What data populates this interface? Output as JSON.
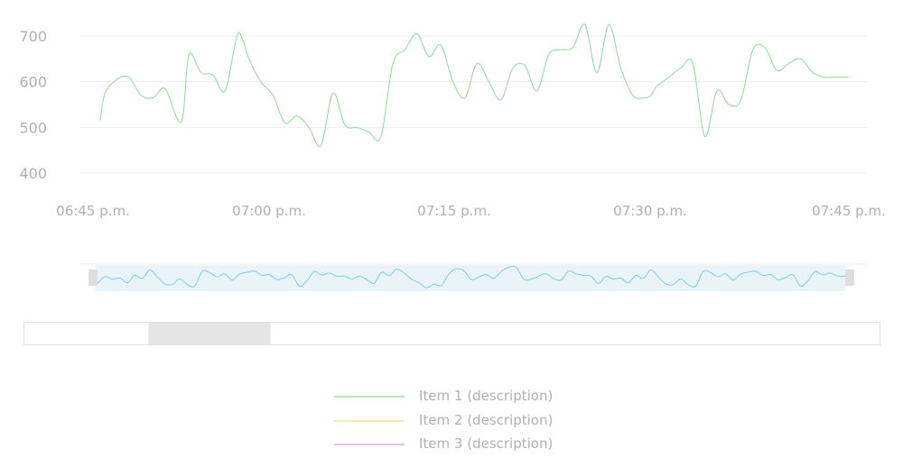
{
  "chart_data": {
    "type": "line",
    "title": "",
    "xlabel": "",
    "ylabel": "",
    "ylim": [
      400,
      700
    ],
    "yticks": [
      "400",
      "500",
      "600",
      "700"
    ],
    "xtick_labels": [
      "06:45 p.m.",
      "07:00 p.m.",
      "07:15 p.m.",
      "07:30 p.m.",
      "07:45 p.m."
    ],
    "grid": true,
    "legend_placement": "bottom-center",
    "series": [
      {
        "name": "Item 1 (description)",
        "color": "#8fd99a",
        "x_minutes": [
          0,
          1,
          2,
          3,
          4,
          5,
          6,
          7,
          7.5,
          8,
          9,
          10,
          11,
          12,
          12.5,
          13,
          14,
          15,
          16,
          17,
          18,
          19,
          20,
          21,
          22,
          23,
          24,
          25,
          26,
          27,
          28,
          29,
          30,
          31,
          32,
          33,
          34,
          35,
          36,
          37,
          38,
          39,
          40,
          41,
          42,
          43,
          44,
          45,
          46,
          46.5,
          47,
          48,
          49,
          50,
          51,
          52,
          53,
          54,
          55,
          56,
          57,
          58,
          59,
          60,
          61,
          62,
          63
        ],
        "values": [
          515,
          575,
          605,
          610,
          570,
          565,
          585,
          520,
          525,
          660,
          620,
          615,
          580,
          700,
          690,
          650,
          600,
          570,
          510,
          525,
          500,
          460,
          575,
          505,
          500,
          490,
          480,
          640,
          670,
          705,
          655,
          680,
          600,
          565,
          640,
          600,
          560,
          630,
          635,
          580,
          660,
          670,
          675,
          725,
          620,
          725,
          630,
          570,
          565,
          570,
          590,
          610,
          630,
          640,
          480,
          580,
          550,
          560,
          670,
          675,
          625,
          640,
          650,
          620,
          610,
          610,
          610
        ]
      },
      {
        "name": "Item 2 (description)",
        "color": "#ffd580",
        "values": []
      },
      {
        "name": "Item 3 (description)",
        "color": "#c9a3e0",
        "values": []
      }
    ],
    "navigator": {
      "series_color": "#7fcbe8",
      "fill_color": "#eaf4f8",
      "window": [
        0,
        100
      ]
    },
    "scrollbar": {
      "thumb_start_pct": 14.5,
      "thumb_end_pct": 28.8
    }
  }
}
